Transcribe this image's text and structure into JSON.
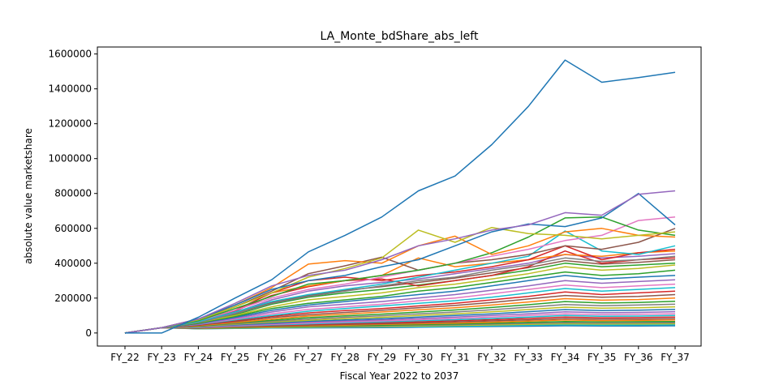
{
  "chart_data": {
    "type": "line",
    "title": "LA_Monte_bdShare_abs_left",
    "xlabel": "Fiscal Year 2022 to 2037",
    "ylabel": "absolute value marketshare",
    "categories": [
      "FY_22",
      "FY_23",
      "FY_24",
      "FY_25",
      "FY_26",
      "FY_27",
      "FY_28",
      "FY_29",
      "FY_30",
      "FY_31",
      "FY_32",
      "FY_33",
      "FY_34",
      "FY_35",
      "FY_36",
      "FY_37"
    ],
    "y_ticks": [
      "0",
      "200000",
      "400000",
      "600000",
      "800000",
      "1000000",
      "1200000",
      "1400000",
      "1600000"
    ],
    "ylim": [
      -75000,
      1640000
    ],
    "grid": false,
    "legend": "none",
    "note_series": "Hundreds of overlapping series; most prominent series estimated below.",
    "series": [
      {
        "color": "#1f77b4",
        "values": [
          0,
          0,
          90000,
          200000,
          305000,
          465000,
          560000,
          665000,
          815000,
          900000,
          1080000,
          1300000,
          1565000,
          1438000,
          1465000,
          1495000
        ]
      },
      {
        "color": "#9467bd",
        "values": [
          0,
          30000,
          80000,
          170000,
          270000,
          330000,
          360000,
          420000,
          500000,
          540000,
          590000,
          620000,
          690000,
          675000,
          795000,
          815000
        ]
      },
      {
        "color": "#1f77b4",
        "values": [
          0,
          30000,
          80000,
          160000,
          250000,
          300000,
          330000,
          380000,
          420000,
          500000,
          580000,
          625000,
          610000,
          660000,
          800000,
          620000
        ]
      },
      {
        "color": "#bcbd22",
        "values": [
          0,
          30000,
          75000,
          150000,
          230000,
          320000,
          370000,
          430000,
          590000,
          520000,
          605000,
          570000,
          560000,
          540000,
          560000,
          580000
        ]
      },
      {
        "color": "#ff7f0e",
        "values": [
          0,
          30000,
          80000,
          160000,
          260000,
          395000,
          415000,
          400000,
          500000,
          555000,
          450000,
          500000,
          580000,
          600000,
          560000,
          550000
        ]
      },
      {
        "color": "#2ca02c",
        "values": [
          0,
          30000,
          70000,
          140000,
          210000,
          280000,
          300000,
          330000,
          360000,
          400000,
          460000,
          550000,
          660000,
          665000,
          590000,
          560000
        ]
      },
      {
        "color": "#e377c2",
        "values": [
          0,
          30000,
          70000,
          130000,
          200000,
          250000,
          280000,
          320000,
          360000,
          400000,
          440000,
          480000,
          530000,
          560000,
          645000,
          665000
        ]
      },
      {
        "color": "#8c564b",
        "values": [
          0,
          30000,
          75000,
          150000,
          240000,
          340000,
          385000,
          435000,
          360000,
          400000,
          420000,
          450000,
          500000,
          480000,
          520000,
          600000
        ]
      },
      {
        "color": "#17becf",
        "values": [
          0,
          30000,
          65000,
          120000,
          180000,
          220000,
          250000,
          280000,
          320000,
          360000,
          400000,
          440000,
          585000,
          470000,
          450000,
          500000
        ]
      },
      {
        "color": "#d62728",
        "values": [
          0,
          30000,
          70000,
          130000,
          230000,
          300000,
          320000,
          300000,
          330000,
          350000,
          380000,
          420000,
          500000,
          420000,
          460000,
          480000
        ]
      },
      {
        "color": "#7f7f7f",
        "values": [
          0,
          30000,
          60000,
          110000,
          170000,
          210000,
          240000,
          270000,
          300000,
          320000,
          360000,
          390000,
          430000,
          410000,
          420000,
          440000
        ]
      },
      {
        "color": "#ff7f0e",
        "values": [
          0,
          30000,
          80000,
          150000,
          230000,
          270000,
          300000,
          330000,
          430000,
          380000,
          400000,
          420000,
          450000,
          440000,
          460000,
          470000
        ]
      },
      {
        "color": "#bcbd22",
        "values": [
          0,
          30000,
          60000,
          100000,
          150000,
          190000,
          210000,
          230000,
          260000,
          280000,
          310000,
          340000,
          380000,
          360000,
          370000,
          390000
        ]
      },
      {
        "color": "#2ca02c",
        "values": [
          0,
          30000,
          55000,
          95000,
          140000,
          170000,
          190000,
          210000,
          240000,
          260000,
          290000,
          320000,
          350000,
          330000,
          340000,
          360000
        ]
      },
      {
        "color": "#1f77b4",
        "values": [
          0,
          30000,
          55000,
          90000,
          130000,
          160000,
          180000,
          200000,
          220000,
          240000,
          270000,
          300000,
          330000,
          310000,
          320000,
          330000
        ]
      },
      {
        "color": "#9467bd",
        "values": [
          0,
          30000,
          50000,
          85000,
          120000,
          150000,
          165000,
          180000,
          200000,
          220000,
          245000,
          270000,
          300000,
          285000,
          295000,
          305000
        ]
      },
      {
        "color": "#e377c2",
        "values": [
          0,
          30000,
          50000,
          80000,
          110000,
          135000,
          150000,
          165000,
          185000,
          200000,
          225000,
          250000,
          275000,
          260000,
          270000,
          280000
        ]
      },
      {
        "color": "#17becf",
        "values": [
          0,
          30000,
          48000,
          75000,
          100000,
          125000,
          140000,
          155000,
          170000,
          185000,
          205000,
          230000,
          255000,
          240000,
          250000,
          260000
        ]
      },
      {
        "color": "#d62728",
        "values": [
          0,
          30000,
          45000,
          70000,
          95000,
          115000,
          128000,
          140000,
          155000,
          170000,
          190000,
          210000,
          235000,
          220000,
          230000,
          240000
        ]
      },
      {
        "color": "#8c564b",
        "values": [
          0,
          30000,
          45000,
          65000,
          88000,
          105000,
          118000,
          130000,
          145000,
          158000,
          175000,
          195000,
          215000,
          205000,
          210000,
          220000
        ]
      },
      {
        "color": "#ff7f0e",
        "values": [
          0,
          30000,
          42000,
          60000,
          80000,
          97000,
          108000,
          120000,
          133000,
          145000,
          160000,
          178000,
          197000,
          188000,
          192000,
          200000
        ]
      },
      {
        "color": "#2ca02c",
        "values": [
          0,
          30000,
          40000,
          57000,
          73000,
          88000,
          98000,
          108000,
          120000,
          132000,
          146000,
          162000,
          180000,
          172000,
          175000,
          182000
        ]
      },
      {
        "color": "#7f7f7f",
        "values": [
          0,
          30000,
          38000,
          53000,
          67000,
          80000,
          90000,
          99000,
          110000,
          120000,
          133000,
          148000,
          163000,
          156000,
          160000,
          165000
        ]
      },
      {
        "color": "#bcbd22",
        "values": [
          0,
          30000,
          36000,
          50000,
          62000,
          73000,
          82000,
          90000,
          100000,
          110000,
          121000,
          134000,
          148000,
          142000,
          145000,
          150000
        ]
      },
      {
        "color": "#1f77b4",
        "values": [
          0,
          30000,
          35000,
          47000,
          57000,
          67000,
          75000,
          82000,
          91000,
          100000,
          110000,
          122000,
          134000,
          128000,
          131000,
          135000
        ]
      },
      {
        "color": "#9467bd",
        "values": [
          0,
          30000,
          33000,
          44000,
          53000,
          62000,
          69000,
          75000,
          83000,
          91000,
          100000,
          110000,
          121000,
          116000,
          118000,
          122000
        ]
      },
      {
        "color": "#e377c2",
        "values": [
          0,
          30000,
          32000,
          41000,
          49000,
          57000,
          63000,
          69000,
          76000,
          83000,
          91000,
          100000,
          110000,
          105000,
          107000,
          110000
        ]
      },
      {
        "color": "#17becf",
        "values": [
          0,
          30000,
          31000,
          39000,
          46000,
          52000,
          58000,
          63000,
          70000,
          76000,
          83000,
          91000,
          100000,
          96000,
          97000,
          100000
        ]
      },
      {
        "color": "#d62728",
        "values": [
          0,
          30000,
          30000,
          37000,
          43000,
          48000,
          53000,
          58000,
          64000,
          70000,
          76000,
          83000,
          91000,
          87000,
          88000,
          91000
        ]
      },
      {
        "color": "#8c564b",
        "values": [
          0,
          30000,
          29000,
          35000,
          40000,
          45000,
          49000,
          53000,
          58000,
          63000,
          69000,
          75000,
          82000,
          79000,
          80000,
          82000
        ]
      },
      {
        "color": "#ff7f0e",
        "values": [
          0,
          30000,
          28000,
          33000,
          37000,
          41000,
          45000,
          49000,
          53000,
          57000,
          62000,
          68000,
          74000,
          71000,
          72000,
          74000
        ]
      },
      {
        "color": "#2ca02c",
        "values": [
          0,
          30000,
          27000,
          31000,
          35000,
          38000,
          41000,
          44000,
          48000,
          52000,
          56000,
          61000,
          66000,
          64000,
          65000,
          66000
        ]
      },
      {
        "color": "#7f7f7f",
        "values": [
          0,
          30000,
          26000,
          30000,
          33000,
          36000,
          38000,
          41000,
          44000,
          47000,
          51000,
          55000,
          59000,
          57000,
          58000,
          59000
        ]
      },
      {
        "color": "#bcbd22",
        "values": [
          0,
          30000,
          25000,
          28000,
          31000,
          33000,
          35000,
          37000,
          40000,
          43000,
          46000,
          49000,
          53000,
          51000,
          52000,
          53000
        ]
      },
      {
        "color": "#17becf",
        "values": [
          0,
          30000,
          25000,
          27000,
          29000,
          31000,
          33000,
          34000,
          36000,
          38000,
          41000,
          44000,
          47000,
          45000,
          46000,
          47000
        ]
      },
      {
        "color": "#1f77b4",
        "values": [
          0,
          30000,
          24000,
          26000,
          28000,
          29000,
          30000,
          31000,
          33000,
          35000,
          37000,
          39000,
          41000,
          40000,
          40000,
          41000
        ]
      },
      {
        "color": "#d62728",
        "values": [
          0,
          30000,
          65000,
          125000,
          215000,
          265000,
          300000,
          310000,
          270000,
          300000,
          330000,
          380000,
          470000,
          400000,
          420000,
          430000
        ]
      },
      {
        "color": "#9467bd",
        "values": [
          0,
          30000,
          62000,
          118000,
          190000,
          240000,
          270000,
          290000,
          310000,
          340000,
          370000,
          400000,
          450000,
          430000,
          440000,
          455000
        ]
      },
      {
        "color": "#2ca02c",
        "values": [
          0,
          30000,
          58000,
          105000,
          165000,
          205000,
          230000,
          250000,
          275000,
          300000,
          330000,
          360000,
          400000,
          380000,
          390000,
          400000
        ]
      },
      {
        "color": "#8c564b",
        "values": [
          0,
          30000,
          60000,
          112000,
          175000,
          215000,
          245000,
          265000,
          290000,
          315000,
          345000,
          375000,
          415000,
          395000,
          405000,
          420000
        ]
      }
    ]
  }
}
